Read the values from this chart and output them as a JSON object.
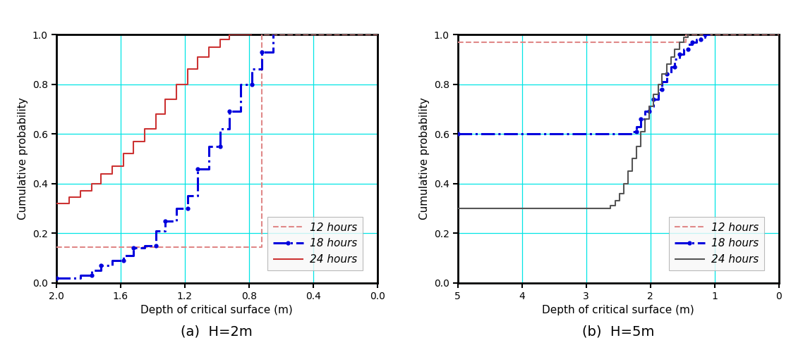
{
  "plot1": {
    "caption": "(a)  H=2m",
    "xlim": [
      2.0,
      0.0
    ],
    "ylim": [
      0.0,
      1.0
    ],
    "xticks": [
      2.0,
      1.6,
      1.2,
      0.8,
      0.4,
      0.0
    ],
    "yticks": [
      0.0,
      0.2,
      0.4,
      0.6,
      0.8,
      1.0
    ],
    "xlabel": "Depth of critical surface (m)",
    "ylabel": "Cumulative probability",
    "series": [
      {
        "label": "12 hours",
        "color": "#e08888",
        "linestyle": "--",
        "linewidth": 1.5,
        "x": [
          2.0,
          0.72,
          0.72,
          0.0
        ],
        "y": [
          0.145,
          0.145,
          1.0,
          1.0
        ]
      },
      {
        "label": "18 hours",
        "color": "#0000dd",
        "linestyle": "-.",
        "linewidth": 2.2,
        "x": [
          2.0,
          1.85,
          1.85,
          1.78,
          1.78,
          1.72,
          1.72,
          1.65,
          1.65,
          1.58,
          1.58,
          1.52,
          1.52,
          1.45,
          1.45,
          1.38,
          1.38,
          1.32,
          1.32,
          1.25,
          1.25,
          1.18,
          1.18,
          1.12,
          1.12,
          1.05,
          1.05,
          0.98,
          0.98,
          0.92,
          0.92,
          0.85,
          0.85,
          0.78,
          0.78,
          0.72,
          0.72,
          0.65,
          0.65
        ],
        "y": [
          0.02,
          0.02,
          0.03,
          0.03,
          0.05,
          0.05,
          0.07,
          0.07,
          0.09,
          0.09,
          0.11,
          0.11,
          0.14,
          0.14,
          0.15,
          0.15,
          0.21,
          0.21,
          0.25,
          0.25,
          0.3,
          0.3,
          0.35,
          0.35,
          0.46,
          0.46,
          0.55,
          0.55,
          0.62,
          0.62,
          0.69,
          0.69,
          0.8,
          0.8,
          0.86,
          0.86,
          0.93,
          0.93,
          1.0
        ]
      },
      {
        "label": "24 hours",
        "color": "#cc3333",
        "linestyle": "-",
        "linewidth": 1.5,
        "x": [
          2.0,
          1.92,
          1.92,
          1.85,
          1.85,
          1.78,
          1.78,
          1.72,
          1.72,
          1.65,
          1.65,
          1.58,
          1.58,
          1.52,
          1.52,
          1.45,
          1.45,
          1.38,
          1.38,
          1.32,
          1.32,
          1.25,
          1.25,
          1.18,
          1.18,
          1.12,
          1.12,
          1.05,
          1.05,
          0.98,
          0.98,
          0.92,
          0.92,
          0.85,
          0.85,
          0.78,
          0.78
        ],
        "y": [
          0.32,
          0.32,
          0.345,
          0.345,
          0.37,
          0.37,
          0.4,
          0.4,
          0.44,
          0.44,
          0.47,
          0.47,
          0.52,
          0.52,
          0.57,
          0.57,
          0.62,
          0.62,
          0.68,
          0.68,
          0.74,
          0.74,
          0.8,
          0.8,
          0.86,
          0.86,
          0.91,
          0.91,
          0.95,
          0.95,
          0.98,
          0.98,
          1.0,
          1.0,
          1.0,
          1.0,
          1.0
        ]
      }
    ],
    "legend_order": [
      0,
      1,
      2
    ]
  },
  "plot2": {
    "caption": "(b)  H=5m",
    "xlim": [
      5.0,
      0.0
    ],
    "ylim": [
      0.0,
      1.0
    ],
    "xticks": [
      5.0,
      4.0,
      3.0,
      2.0,
      1.0,
      0.0
    ],
    "yticks": [
      0.0,
      0.2,
      0.4,
      0.6,
      0.8,
      1.0
    ],
    "xlabel": "Depth of critical surface (m)",
    "ylabel": "Cumulative probability",
    "series": [
      {
        "label": "12 hours",
        "color": "#e08888",
        "linestyle": "--",
        "linewidth": 1.5,
        "x": [
          5.0,
          1.45,
          1.45,
          0.0
        ],
        "y": [
          0.97,
          0.97,
          1.0,
          1.0
        ]
      },
      {
        "label": "18 hours",
        "color": "#0000dd",
        "linestyle": "-.",
        "linewidth": 2.2,
        "x": [
          5.0,
          2.28,
          2.28,
          2.22,
          2.22,
          2.15,
          2.15,
          2.08,
          2.08,
          2.02,
          2.02,
          1.95,
          1.95,
          1.88,
          1.88,
          1.82,
          1.82,
          1.75,
          1.75,
          1.68,
          1.68,
          1.62,
          1.62,
          1.55,
          1.55,
          1.48,
          1.48,
          1.42,
          1.42,
          1.35,
          1.35,
          1.28,
          1.28,
          1.22,
          1.22,
          1.15,
          1.15,
          1.08,
          1.08
        ],
        "y": [
          0.6,
          0.6,
          0.61,
          0.61,
          0.63,
          0.63,
          0.66,
          0.66,
          0.69,
          0.69,
          0.71,
          0.71,
          0.74,
          0.74,
          0.78,
          0.78,
          0.81,
          0.81,
          0.84,
          0.84,
          0.87,
          0.87,
          0.9,
          0.9,
          0.92,
          0.92,
          0.94,
          0.94,
          0.96,
          0.96,
          0.97,
          0.97,
          0.98,
          0.98,
          0.99,
          0.99,
          1.0,
          1.0,
          1.0
        ]
      },
      {
        "label": "24 hours",
        "color": "#555555",
        "linestyle": "-",
        "linewidth": 1.5,
        "x": [
          5.0,
          2.62,
          2.62,
          2.55,
          2.55,
          2.48,
          2.48,
          2.42,
          2.42,
          2.35,
          2.35,
          2.28,
          2.28,
          2.22,
          2.22,
          2.15,
          2.15,
          2.08,
          2.08,
          2.02,
          2.02,
          1.95,
          1.95,
          1.88,
          1.88,
          1.82,
          1.82,
          1.75,
          1.75,
          1.68,
          1.68,
          1.62,
          1.62,
          1.55,
          1.55,
          1.48,
          1.48,
          1.42,
          1.42
        ],
        "y": [
          0.3,
          0.3,
          0.31,
          0.31,
          0.33,
          0.33,
          0.36,
          0.36,
          0.4,
          0.4,
          0.45,
          0.45,
          0.5,
          0.5,
          0.55,
          0.55,
          0.61,
          0.61,
          0.66,
          0.66,
          0.71,
          0.71,
          0.76,
          0.76,
          0.8,
          0.8,
          0.84,
          0.84,
          0.88,
          0.88,
          0.91,
          0.91,
          0.94,
          0.94,
          0.97,
          0.97,
          0.99,
          0.99,
          1.0
        ]
      }
    ],
    "legend_order": [
      0,
      1,
      2
    ]
  },
  "bg_color": "#ffffff",
  "grid_color": "#00e5e5",
  "axis_color": "#000000",
  "caption_fontsize": 14,
  "label_fontsize": 11,
  "tick_fontsize": 10,
  "legend_fontsize": 11
}
